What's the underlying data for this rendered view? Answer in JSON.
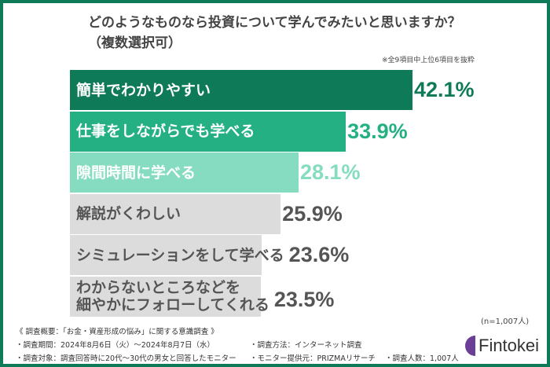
{
  "chart_data": {
    "type": "bar",
    "orientation": "horizontal",
    "title": "どのようなものなら投資について学んでみたいと思いますか？",
    "subtitle": "（複数選択可）",
    "note": "※全9項目中上位6項目を抜粋",
    "categories": [
      "簡単でわかりやすい",
      "仕事をしながらでも学べる",
      "隙間時間に学べる",
      "解説がくわしい",
      "シミュレーションをして学べる",
      "わからないところなどを\n細やかにフォローしてくれる"
    ],
    "values": [
      42.1,
      33.9,
      28.1,
      25.9,
      23.6,
      23.5
    ],
    "value_labels": [
      "42.1%",
      "33.9%",
      "28.1%",
      "25.9%",
      "23.6%",
      "23.5%"
    ],
    "bar_colors": [
      "#0f7a57",
      "#24b083",
      "#86dcc0",
      "#dcdcdc",
      "#dcdcdc",
      "#dcdcdc"
    ],
    "label_colors": [
      "#ffffff",
      "#ffffff",
      "#ffffff",
      "#555555",
      "#555555",
      "#555555"
    ],
    "value_colors": [
      "#0f7a57",
      "#24b083",
      "#86dcc0",
      "#555555",
      "#555555",
      "#555555"
    ],
    "sample": "(n=1,007人)"
  },
  "footer": {
    "heading": "《 調査概要：「お金・資産形成の悩み」に関する意識調査 》",
    "period": "・調査期間：2024年8月6日（火）～2024年8月7日（水）",
    "method": "・調査方法：インターネット調査",
    "target": "・調査対象：調査回答時に20代～30代の男女と回答したモニター",
    "provider": "・モニター提供元：PRIZMAリサーチ",
    "count": "・調査人数：1,007人"
  },
  "logo": {
    "text": "Fintokei",
    "color": "#6b3f98"
  },
  "frame_color": "#0f7a57"
}
